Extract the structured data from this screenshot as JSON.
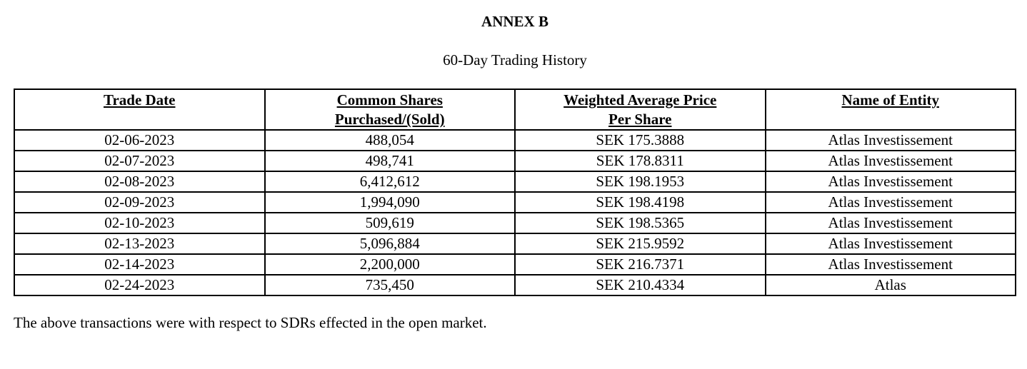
{
  "document": {
    "annex_title": "ANNEX B",
    "subtitle": "60-Day Trading History",
    "footnote": "The above transactions were with respect to SDRs effected in the open market."
  },
  "table": {
    "headers": [
      [
        "Trade Date"
      ],
      [
        "Common Shares",
        "Purchased/(Sold)"
      ],
      [
        "Weighted Average Price",
        "Per Share"
      ],
      [
        "Name of Entity"
      ]
    ],
    "rows": [
      [
        "02-06-2023",
        "488,054",
        "SEK 175.3888",
        "Atlas Investissement"
      ],
      [
        "02-07-2023",
        "498,741",
        "SEK 178.8311",
        "Atlas Investissement"
      ],
      [
        "02-08-2023",
        "6,412,612",
        "SEK 198.1953",
        "Atlas Investissement"
      ],
      [
        "02-09-2023",
        "1,994,090",
        "SEK 198.4198",
        "Atlas Investissement"
      ],
      [
        "02-10-2023",
        "509,619",
        "SEK 198.5365",
        "Atlas Investissement"
      ],
      [
        "02-13-2023",
        "5,096,884",
        "SEK 215.9592",
        "Atlas Investissement"
      ],
      [
        "02-14-2023",
        "2,200,000",
        "SEK 216.7371",
        "Atlas Investissement"
      ],
      [
        "02-24-2023",
        "735,450",
        "SEK 210.4334",
        "Atlas"
      ]
    ]
  }
}
